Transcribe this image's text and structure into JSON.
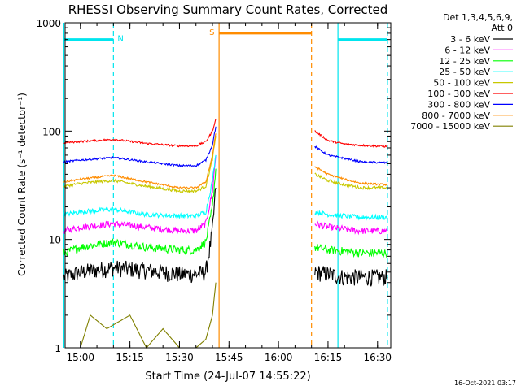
{
  "chart_data": {
    "type": "line",
    "title": "RHESSI Observing Summary Count Rates, Corrected",
    "xlabel": "Start Time (24-Jul-07 14:55:22)",
    "ylabel": "Corrected Count Rate (s⁻¹ detector⁻¹)",
    "yscale": "log",
    "ylim": [
      1,
      1000
    ],
    "xlim": [
      "14:55:22",
      "16:34"
    ],
    "x_ticks": [
      "15:00",
      "15:15",
      "15:30",
      "15:45",
      "16:00",
      "16:15",
      "16:30"
    ],
    "y_ticks": [
      "1",
      "10",
      "100",
      "1000"
    ],
    "legend_header": [
      "Det 1,3,4,5,6,9,",
      "Att 0"
    ],
    "legend_position": "right",
    "footer_timestamp": "16-Oct-2021 03:17",
    "segment_markers": [
      {
        "label": "N",
        "color": "#00e5ee",
        "start": "14:55",
        "end": "15:10",
        "level": 700
      },
      {
        "label": "",
        "color": "#00e5ee",
        "start": "16:18",
        "end": "16:33",
        "level": 700
      },
      {
        "label": "S",
        "color": "#ff8c00",
        "start": "15:42",
        "end": "16:10",
        "level": 800
      }
    ],
    "vertical_lines": [
      {
        "time": "14:55",
        "color": "#00e5ee",
        "style": "solid"
      },
      {
        "time": "15:10",
        "color": "#00e5ee",
        "style": "dashed"
      },
      {
        "time": "15:42",
        "color": "#ff8c00",
        "style": "solid"
      },
      {
        "time": "16:10",
        "color": "#ff8c00",
        "style": "dashed"
      },
      {
        "time": "16:18",
        "color": "#00e5ee",
        "style": "solid"
      },
      {
        "time": "16:33",
        "color": "#00e5ee",
        "style": "dashed"
      }
    ],
    "series": [
      {
        "name": "3 - 6 keV",
        "color": "#000000",
        "noise": 0.18,
        "segments": [
          {
            "times": [
              "14:55",
              "15:00",
              "15:10",
              "15:20",
              "15:30",
              "15:35",
              "15:38",
              "15:40",
              "15:41"
            ],
            "values": [
              4.5,
              5.0,
              5.5,
              5.2,
              4.8,
              4.8,
              5.0,
              12,
              30
            ]
          },
          {
            "times": [
              "16:11",
              "16:15",
              "16:20",
              "16:25",
              "16:33"
            ],
            "values": [
              5.0,
              4.8,
              4.5,
              4.5,
              4.5
            ]
          }
        ]
      },
      {
        "name": "6 - 12 keV",
        "color": "#ff00ff",
        "noise": 0.07,
        "segments": [
          {
            "times": [
              "14:55",
              "15:00",
              "15:10",
              "15:20",
              "15:30",
              "15:35",
              "15:38",
              "15:40",
              "15:41"
            ],
            "values": [
              12,
              13,
              14,
              13,
              12,
              12,
              14,
              28,
              60
            ]
          },
          {
            "times": [
              "16:11",
              "16:15",
              "16:20",
              "16:25",
              "16:33"
            ],
            "values": [
              14,
              13,
              12.5,
              12,
              12
            ]
          }
        ]
      },
      {
        "name": "12 - 25 keV",
        "color": "#00ff00",
        "noise": 0.09,
        "segments": [
          {
            "times": [
              "14:55",
              "15:00",
              "15:10",
              "15:20",
              "15:30",
              "15:35",
              "15:38",
              "15:40",
              "15:41"
            ],
            "values": [
              7.5,
              8.5,
              9.5,
              8.5,
              8.0,
              8.0,
              9.5,
              20,
              45
            ]
          },
          {
            "times": [
              "16:11",
              "16:15",
              "16:20",
              "16:25",
              "16:33"
            ],
            "values": [
              8.5,
              8.0,
              7.8,
              7.5,
              7.5
            ]
          }
        ]
      },
      {
        "name": "25 - 50 keV",
        "color": "#00ffff",
        "noise": 0.05,
        "segments": [
          {
            "times": [
              "14:55",
              "15:00",
              "15:10",
              "15:20",
              "15:30",
              "15:35",
              "15:38",
              "15:40",
              "15:41"
            ],
            "values": [
              17,
              18,
              19,
              17,
              16.5,
              16.5,
              18,
              35,
              60
            ]
          },
          {
            "times": [
              "16:11",
              "16:15",
              "16:20",
              "16:25",
              "16:33"
            ],
            "values": [
              18,
              17,
              16.5,
              16,
              16
            ]
          }
        ]
      },
      {
        "name": "50 - 100 keV",
        "color": "#c8c800",
        "noise": 0.03,
        "segments": [
          {
            "times": [
              "14:55",
              "15:00",
              "15:10",
              "15:20",
              "15:30",
              "15:35",
              "15:38",
              "15:40",
              "15:41"
            ],
            "values": [
              31,
              33,
              35,
              31,
              28,
              28,
              31,
              55,
              90
            ]
          },
          {
            "times": [
              "16:11",
              "16:15",
              "16:20",
              "16:25",
              "16:33"
            ],
            "values": [
              40,
              35,
              32,
              30,
              30
            ]
          }
        ]
      },
      {
        "name": "100 - 300 keV",
        "color": "#ff0000",
        "noise": 0.02,
        "segments": [
          {
            "times": [
              "14:55",
              "15:00",
              "15:10",
              "15:20",
              "15:30",
              "15:35",
              "15:38",
              "15:40",
              "15:41"
            ],
            "values": [
              78,
              80,
              84,
              77,
              73,
              73,
              80,
              100,
              130
            ]
          },
          {
            "times": [
              "16:11",
              "16:15",
              "16:20",
              "16:25",
              "16:33"
            ],
            "values": [
              100,
              82,
              76,
              74,
              72
            ]
          }
        ]
      },
      {
        "name": "300 - 800 keV",
        "color": "#0000ff",
        "noise": 0.02,
        "segments": [
          {
            "times": [
              "14:55",
              "15:00",
              "15:10",
              "15:20",
              "15:30",
              "15:35",
              "15:38",
              "15:40",
              "15:41"
            ],
            "values": [
              52,
              54,
              57,
              52,
              48,
              48,
              54,
              75,
              110
            ]
          },
          {
            "times": [
              "16:11",
              "16:15",
              "16:20",
              "16:25",
              "16:33"
            ],
            "values": [
              72,
              60,
              56,
              52,
              51
            ]
          }
        ]
      },
      {
        "name": "800 - 7000 keV",
        "color": "#ff8c00",
        "noise": 0.02,
        "segments": [
          {
            "times": [
              "14:55",
              "15:00",
              "15:10",
              "15:20",
              "15:30",
              "15:35",
              "15:38",
              "15:40",
              "15:41"
            ],
            "values": [
              34,
              36,
              39,
              34,
              30,
              30,
              34,
              60,
              95
            ]
          },
          {
            "times": [
              "16:11",
              "16:15",
              "16:20",
              "16:25",
              "16:33"
            ],
            "values": [
              47,
              40,
              36,
              33,
              32
            ]
          }
        ]
      },
      {
        "name": "7000 - 15000 keV",
        "color": "#808000",
        "noise": 0.0,
        "segments": [
          {
            "times": [
              "15:00",
              "15:03",
              "15:08",
              "15:15",
              "15:20",
              "15:25",
              "15:30",
              "15:35",
              "15:38",
              "15:40",
              "15:41"
            ],
            "values": [
              1.0,
              2.0,
              1.5,
              2.0,
              1.0,
              1.5,
              1.0,
              1.0,
              1.2,
              2.0,
              4.0
            ]
          }
        ]
      }
    ]
  }
}
